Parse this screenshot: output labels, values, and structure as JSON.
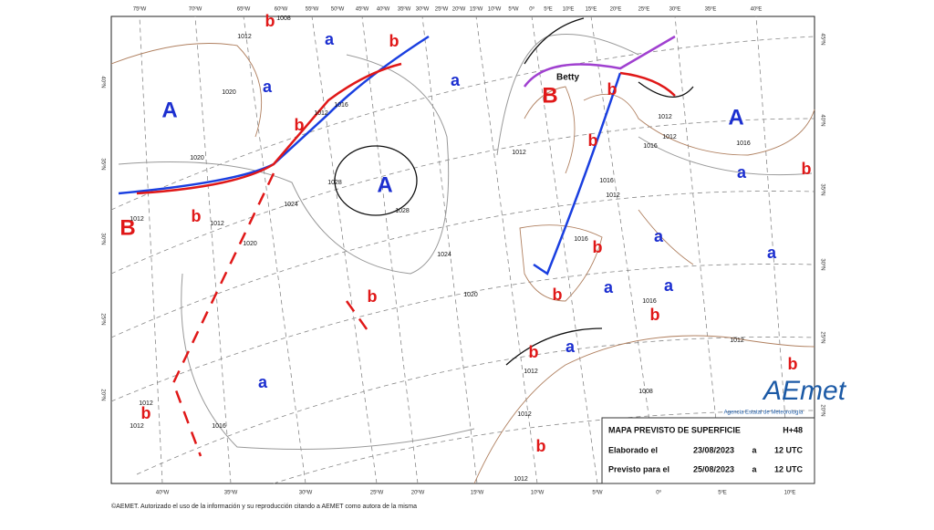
{
  "map": {
    "top_lon_labels": [
      "75ºW",
      "70ºW",
      "65ºW",
      "60ºW",
      "55ºW",
      "50ºW",
      "45ºW",
      "40ºW",
      "35ºW",
      "30ºW",
      "25ºW",
      "20ºW",
      "15ºW",
      "10ºW",
      "5ºW",
      "0º",
      "5ºE",
      "10ºE",
      "15ºE",
      "20ºE",
      "25ºE",
      "30ºE",
      "35ºE",
      "40ºE"
    ],
    "bottom_lon_labels": [
      "40ºW",
      "35ºW",
      "30ºW",
      "25ºW",
      "20ºW",
      "15ºW",
      "10ºW",
      "5ºW",
      "0º",
      "5ºE",
      "10ºE"
    ],
    "left_lat_labels": [
      "40ºN",
      "35ºN",
      "30ºN",
      "25ºN",
      "20ºN"
    ],
    "right_lat_labels": [
      "45ºN",
      "40ºN",
      "35ºN",
      "30ºN",
      "25ºN",
      "20ºN"
    ],
    "pressure_centers": [
      "A",
      "a",
      "a",
      "a",
      "b",
      "b",
      "B",
      "b",
      "b",
      "b",
      "A",
      "A",
      "b",
      "B",
      "a",
      "a",
      "a",
      "b",
      "b",
      "a",
      "a",
      "b",
      "b",
      "a",
      "b",
      "b",
      "a",
      "b",
      "b",
      "b"
    ],
    "isobar_labels": [
      "1008",
      "1012",
      "1012",
      "1016",
      "1020",
      "1020",
      "1024",
      "1028",
      "1028",
      "1012",
      "1012",
      "1020",
      "1024",
      "1020",
      "1016",
      "1012",
      "1012",
      "1012",
      "1012",
      "1012",
      "1016",
      "1012",
      "1016",
      "1016",
      "1012",
      "1008",
      "1012",
      "1012",
      "1012",
      "1016",
      "1016"
    ],
    "storm_name": "Betty"
  },
  "info_box": {
    "title": "MAPA PREVISTO DE SUPERFICIE",
    "forecast_hour": "H+48",
    "rows": [
      [
        "Elaborado el",
        "23/08/2023",
        "a",
        "12 UTC"
      ],
      [
        "Previsto para el",
        "25/08/2023",
        "a",
        "12 UTC"
      ]
    ]
  },
  "logo": {
    "name": "AEmet",
    "subtitle": "Agencia Estatal de Meteorología"
  },
  "footer": "©AEMET. Autorizado el uso de la información y su reproducción citando a AEMET como autora de la misma"
}
